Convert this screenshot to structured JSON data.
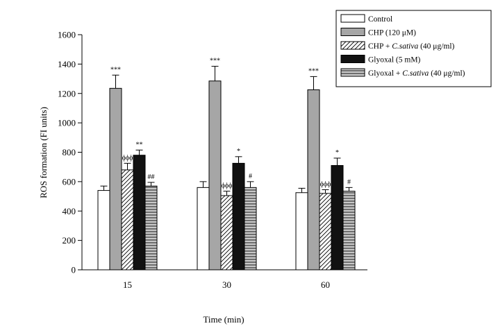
{
  "chart_data": {
    "type": "bar",
    "title": "",
    "xlabel": "Time (min)",
    "ylabel": "ROS formation (FI units)",
    "ylim": [
      0,
      1600
    ],
    "yticks": [
      0,
      200,
      400,
      600,
      800,
      1000,
      1200,
      1400,
      1600
    ],
    "categories": [
      "15",
      "30",
      "60"
    ],
    "legend_position": "top-right",
    "series": [
      {
        "name": "Control",
        "legend_parts": [
          {
            "text": "Control",
            "italic": false
          }
        ],
        "pattern": "white",
        "values": [
          540,
          560,
          525
        ],
        "errors": [
          30,
          40,
          30
        ],
        "labels": [
          "",
          "",
          ""
        ]
      },
      {
        "name": "CHP (120 μM)",
        "legend_parts": [
          {
            "text": "CHP (120 μM)",
            "italic": false
          }
        ],
        "pattern": "gray",
        "values": [
          1235,
          1285,
          1225
        ],
        "errors": [
          90,
          100,
          90
        ],
        "labels": [
          "***",
          "***",
          "***"
        ]
      },
      {
        "name": "CHP + C.sativa (40 μg/ml)",
        "legend_parts": [
          {
            "text": "CHP + ",
            "italic": false
          },
          {
            "text": "C.sativa",
            "italic": true
          },
          {
            "text": " (40 μg/ml)",
            "italic": false
          }
        ],
        "pattern": "diagonal",
        "values": [
          680,
          505,
          520
        ],
        "errors": [
          45,
          30,
          25
        ],
        "labels": [
          "ϕϕϕ",
          "ϕϕϕ",
          "ϕϕϕ"
        ]
      },
      {
        "name": "Glyoxal (5 mM)",
        "legend_parts": [
          {
            "text": "Glyoxal (5 mM)",
            "italic": false
          }
        ],
        "pattern": "black",
        "values": [
          780,
          725,
          710
        ],
        "errors": [
          35,
          45,
          50
        ],
        "labels": [
          "**",
          "*",
          "*"
        ]
      },
      {
        "name": "Glyoxal + C.sativa (40 μg/ml)",
        "legend_parts": [
          {
            "text": "Glyoxal + ",
            "italic": false
          },
          {
            "text": "C.sativa",
            "italic": true
          },
          {
            "text": " (40 μg/ml)",
            "italic": false
          }
        ],
        "pattern": "horizontal",
        "values": [
          570,
          560,
          535
        ],
        "errors": [
          25,
          40,
          25
        ],
        "labels": [
          "##",
          "#",
          "#"
        ]
      }
    ]
  },
  "colors": {
    "gray_fill": "#a6a6a6",
    "black_fill": "#111111",
    "white_fill": "#ffffff",
    "line": "#000000"
  }
}
